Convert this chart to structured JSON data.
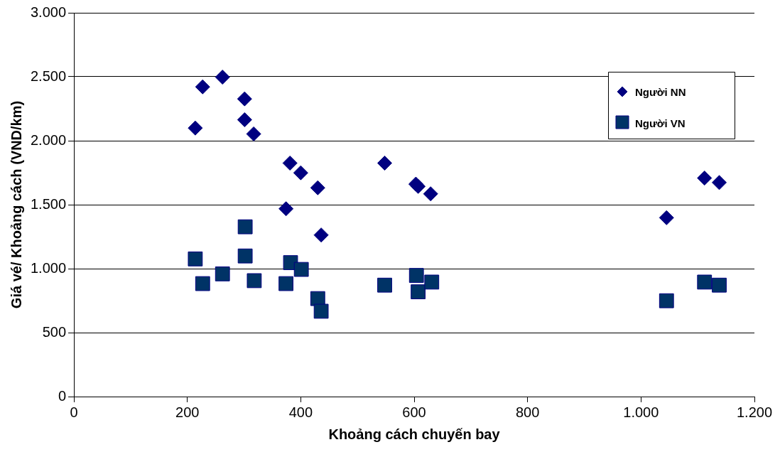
{
  "chart_data": {
    "type": "scatter",
    "xlabel": "Khoảng cách chuyến bay",
    "ylabel": "Giá vé/ Khoảng cách (VND/km)",
    "xlim": [
      0,
      1200
    ],
    "xticks": [
      0,
      200,
      400,
      {
        "value": 600,
        "label": "600"
      },
      800,
      {
        "value": 1000,
        "label": "1.000"
      },
      {
        "value": 1200,
        "label": "1.200"
      }
    ],
    "ylim": [
      0,
      3000
    ],
    "yticks": [
      0,
      500,
      {
        "value": 1000,
        "label": "1.000"
      },
      {
        "value": 1500,
        "label": "1.500"
      },
      {
        "value": 2000,
        "label": "2.000"
      },
      {
        "value": 2500,
        "label": "2.500"
      },
      {
        "value": 3000,
        "label": "3.000"
      }
    ],
    "grid": "y",
    "legend": "top right",
    "series": [
      {
        "name": "Người NN",
        "color": "#000080",
        "marker": "diamond",
        "x": [
          214,
          227,
          262,
          301,
          301,
          317,
          381,
          400,
          430,
          374,
          436,
          548,
          603,
          607,
          629,
          1045,
          1112,
          1138
        ],
        "values": [
          2099,
          2421,
          2497,
          2327,
          2164,
          2053,
          1825,
          1749,
          1632,
          1468,
          1263,
          1825,
          1661,
          1643,
          1585,
          1398,
          1708,
          1673
        ]
      },
      {
        "name": "Người VN",
        "color": "#003366",
        "marker": "square",
        "x": [
          214,
          227,
          262,
          302,
          302,
          318,
          374,
          382,
          401,
          430,
          436,
          548,
          604,
          607,
          631,
          1045,
          1112,
          1138
        ],
        "values": [
          1076,
          883,
          959,
          1327,
          1099,
          906,
          883,
          1047,
          994,
          766,
          667,
          871,
          947,
          819,
          895,
          749,
          895,
          871
        ]
      }
    ]
  }
}
